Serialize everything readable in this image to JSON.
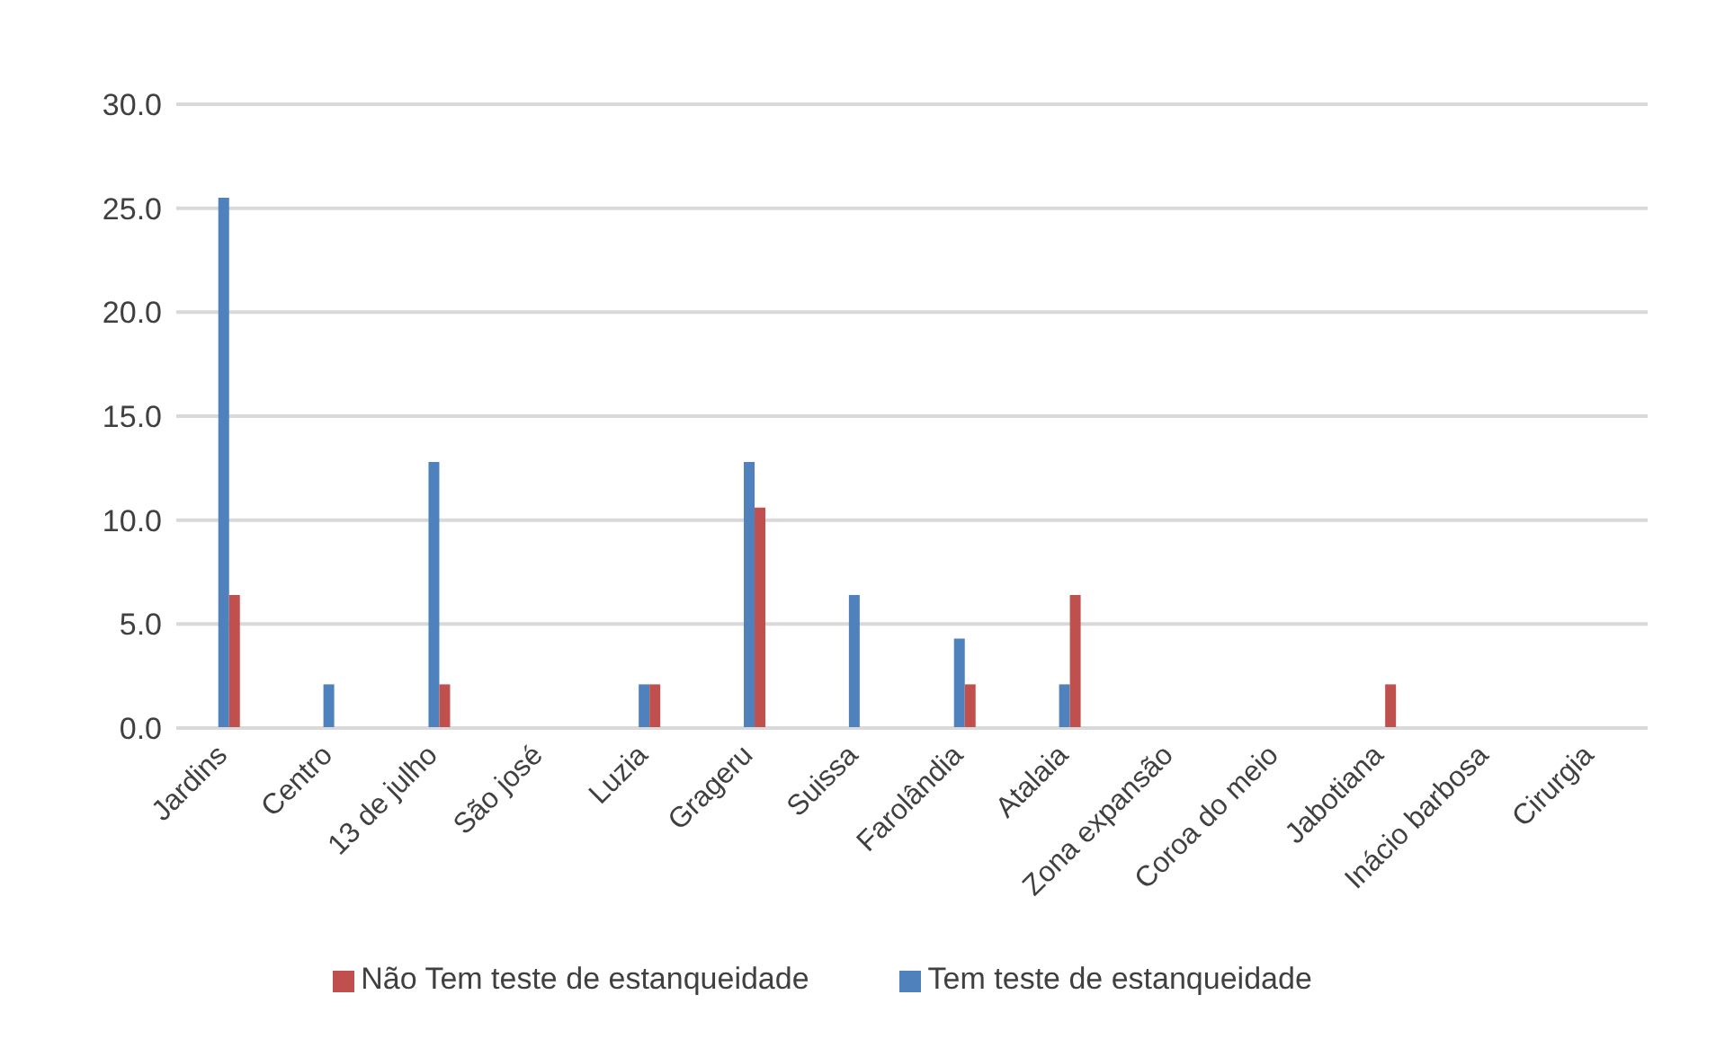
{
  "chart_data": {
    "type": "bar",
    "categories": [
      "Jardins",
      "Centro",
      "13 de julho",
      "São josé",
      "Luzia",
      "Grageru",
      "Suissa",
      "Farolândia",
      "Atalaia",
      "Zona expansão",
      "Coroa do meio",
      "Jabotiana",
      "Inácio barbosa",
      "Cirurgia"
    ],
    "series": [
      {
        "name": "Tem teste de estanqueidade",
        "color": "#4f81bd",
        "values": [
          25.5,
          2.1,
          12.8,
          0,
          2.1,
          12.8,
          6.4,
          4.3,
          2.1,
          0,
          0,
          0,
          0,
          0
        ]
      },
      {
        "name": "Não Tem teste de estanqueidade",
        "color": "#c0504d",
        "values": [
          6.4,
          0,
          2.1,
          0,
          2.1,
          10.6,
          0,
          2.1,
          6.4,
          0,
          0,
          2.1,
          0,
          0
        ]
      }
    ],
    "ylim": [
      0,
      30
    ],
    "yticks": [
      {
        "value": 0,
        "label": "0.0"
      },
      {
        "value": 5,
        "label": "5.0"
      },
      {
        "value": 10,
        "label": "10.0"
      },
      {
        "value": 15,
        "label": "15.0"
      },
      {
        "value": 20,
        "label": "20.0"
      },
      {
        "value": 25,
        "label": "25.0"
      },
      {
        "value": 30,
        "label": "30.0"
      }
    ],
    "grid": "y",
    "legend": "bottom"
  }
}
